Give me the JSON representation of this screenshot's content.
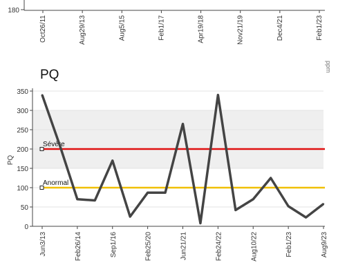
{
  "top_chart": {
    "ytick_labels": [
      "180"
    ],
    "xtick_labels": [
      "Oct26/11",
      "Aug29/13",
      "Aug5/15",
      "Feb1/17",
      "Apr19/18",
      "Nov21/19",
      "Dec4/21",
      "Feb1/23"
    ]
  },
  "side_label": "ppm",
  "chart_data": {
    "type": "line",
    "title": "PQ",
    "ylabel": "PQ",
    "xlabel": "",
    "ylim": [
      0,
      350
    ],
    "yticks": [
      0,
      50,
      100,
      150,
      200,
      250,
      300,
      350
    ],
    "xtick_labels": [
      "Jun3/13",
      "Feb26/14",
      "Sep1/16",
      "Feb25/20",
      "Jun21/21",
      "Feb24/22",
      "Aug10/22",
      "Feb1/23",
      "Aug9/23"
    ],
    "series": [
      {
        "values": [
          340,
          210,
          70,
          67,
          170,
          25,
          87,
          87,
          265,
          8,
          340,
          42,
          70,
          125,
          52,
          23,
          58
        ],
        "color": "#444444"
      }
    ],
    "reference_lines": [
      {
        "label": "Sévère",
        "value": 200,
        "color": "#e01010"
      },
      {
        "label": "Anormal",
        "value": 100,
        "color": "#f0c000"
      }
    ],
    "bands": [
      {
        "from": 150,
        "to": 300,
        "color": "#efefef"
      }
    ],
    "grid": true
  }
}
